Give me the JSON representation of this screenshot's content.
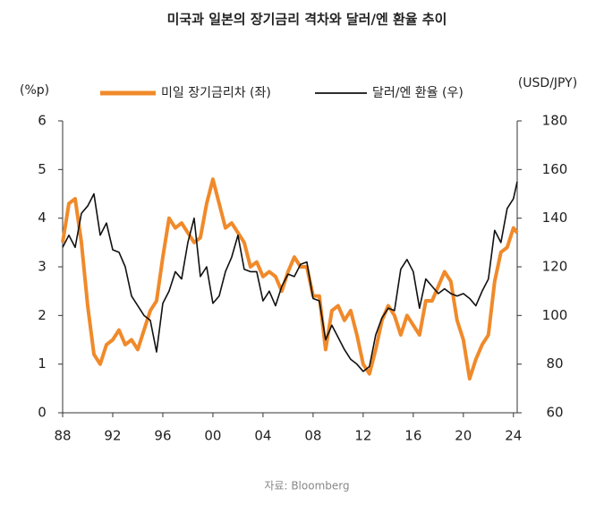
{
  "chart_data": {
    "type": "line",
    "title": "미국과 일본의 장기금리 격차와 달러/엔 환율 추이",
    "y_label": "(%p)",
    "y2_label": "(USD/JPY)",
    "source": "자료: Bloomberg",
    "x": [
      1988.0,
      1988.5,
      1989.0,
      1989.5,
      1990.0,
      1990.5,
      1991.0,
      1991.5,
      1992.0,
      1992.5,
      1993.0,
      1993.5,
      1994.0,
      1994.5,
      1995.0,
      1995.5,
      1996.0,
      1996.5,
      1997.0,
      1997.5,
      1998.0,
      1998.5,
      1999.0,
      1999.5,
      2000.0,
      2000.5,
      2001.0,
      2001.5,
      2002.0,
      2002.5,
      2003.0,
      2003.5,
      2004.0,
      2004.5,
      2005.0,
      2005.5,
      2006.0,
      2006.5,
      2007.0,
      2007.5,
      2008.0,
      2008.5,
      2009.0,
      2009.5,
      2010.0,
      2010.5,
      2011.0,
      2011.5,
      2012.0,
      2012.5,
      2013.0,
      2013.5,
      2014.0,
      2014.5,
      2015.0,
      2015.5,
      2016.0,
      2016.5,
      2017.0,
      2017.5,
      2018.0,
      2018.5,
      2019.0,
      2019.5,
      2020.0,
      2020.5,
      2021.0,
      2021.5,
      2022.0,
      2022.5,
      2023.0,
      2023.5,
      2024.0,
      2024.3
    ],
    "series": [
      {
        "name": "미일 장기금리차 (좌)",
        "color": "#f08a2a",
        "width": 4,
        "values": [
          3.5,
          4.3,
          4.4,
          3.5,
          2.2,
          1.2,
          1.0,
          1.4,
          1.5,
          1.7,
          1.4,
          1.5,
          1.3,
          1.7,
          2.1,
          2.3,
          3.2,
          4.0,
          3.8,
          3.9,
          3.7,
          3.5,
          3.6,
          4.3,
          4.8,
          4.3,
          3.8,
          3.9,
          3.7,
          3.5,
          3.0,
          3.1,
          2.8,
          2.9,
          2.8,
          2.5,
          2.9,
          3.2,
          3.0,
          3.0,
          2.4,
          2.4,
          1.3,
          2.1,
          2.2,
          1.9,
          2.1,
          1.6,
          1.0,
          0.8,
          1.3,
          1.9,
          2.2,
          2.0,
          1.6,
          2.0,
          1.8,
          1.6,
          2.3,
          2.3,
          2.6,
          2.9,
          2.7,
          1.9,
          1.5,
          0.7,
          1.1,
          1.4,
          1.6,
          2.7,
          3.3,
          3.4,
          3.8,
          3.7
        ]
      },
      {
        "name": "달러/엔 환율 (우)",
        "color": "#111111",
        "width": 1.6,
        "axis": "y2",
        "values": [
          128,
          133,
          128,
          142,
          145,
          150,
          133,
          138,
          127,
          126,
          120,
          108,
          104,
          100,
          98,
          85,
          105,
          110,
          118,
          115,
          130,
          140,
          116,
          120,
          105,
          108,
          118,
          124,
          133,
          119,
          118,
          118,
          106,
          110,
          104,
          112,
          117,
          116,
          121,
          122,
          107,
          106,
          90,
          96,
          91,
          86,
          82,
          80,
          77,
          79,
          92,
          99,
          103,
          102,
          119,
          123,
          118,
          103,
          115,
          112,
          109,
          111,
          109,
          108,
          109,
          107,
          104,
          110,
          115,
          135,
          130,
          144,
          148,
          155
        ]
      }
    ],
    "xlim": [
      1988,
      2024.3
    ],
    "xticks": [
      {
        "value": 1988,
        "label": "88"
      },
      {
        "value": 1992,
        "label": "92"
      },
      {
        "value": 1996,
        "label": "96"
      },
      {
        "value": 2000,
        "label": "00"
      },
      {
        "value": 2004,
        "label": "04"
      },
      {
        "value": 2008,
        "label": "08"
      },
      {
        "value": 2012,
        "label": "12"
      },
      {
        "value": 2016,
        "label": "16"
      },
      {
        "value": 2020,
        "label": "20"
      },
      {
        "value": 2024,
        "label": "24"
      }
    ],
    "ylim": [
      0,
      6
    ],
    "yticks": [
      0,
      1,
      2,
      3,
      4,
      5,
      6
    ],
    "y2lim": [
      60,
      180
    ],
    "y2ticks": [
      60,
      80,
      100,
      120,
      140,
      160,
      180
    ]
  }
}
